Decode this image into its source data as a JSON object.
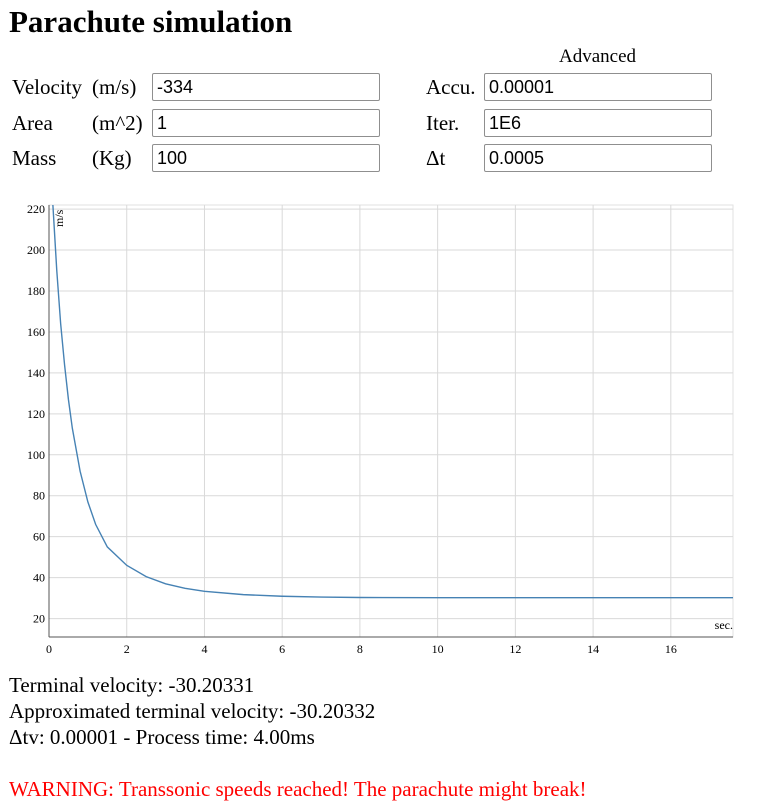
{
  "page": {
    "title": "Parachute simulation"
  },
  "inputs": {
    "velocity": {
      "label": "Velocity",
      "unit": "(m/s)",
      "value": "-334"
    },
    "area": {
      "label": "Area",
      "unit": "(m^2)",
      "value": "1"
    },
    "mass": {
      "label": "Mass",
      "unit": "(Kg)",
      "value": "100"
    }
  },
  "advanced": {
    "heading": "Advanced",
    "accuracy": {
      "label": "Accu.",
      "value": "0.00001"
    },
    "iterations": {
      "label": "Iter.",
      "value": "1E6"
    },
    "dt": {
      "label": "Δt",
      "value": "0.0005"
    }
  },
  "chart_data": {
    "type": "line",
    "ylabel": "m/s",
    "xlabel": "sec.",
    "xlim": [
      0,
      17.6
    ],
    "ylim": [
      11,
      222
    ],
    "x_ticks": [
      0,
      2,
      4,
      6,
      8,
      10,
      12,
      14,
      16
    ],
    "y_ticks": [
      20,
      40,
      60,
      80,
      100,
      120,
      140,
      160,
      180,
      200,
      220
    ],
    "grid": true,
    "series": [
      {
        "color": "#4682b4",
        "x": [
          0.1,
          0.2,
          0.3,
          0.4,
          0.5,
          0.6,
          0.8,
          1.0,
          1.2,
          1.5,
          2.0,
          2.5,
          3.0,
          3.5,
          4.0,
          5.0,
          6.0,
          7.0,
          8.0,
          10.0,
          12.0,
          14.0,
          17.6
        ],
        "y": [
          222,
          190,
          164,
          144,
          127,
          113,
          92,
          77,
          66,
          55,
          46,
          40.5,
          37,
          34.8,
          33.3,
          31.7,
          30.9,
          30.5,
          30.3,
          30.2,
          30.2,
          30.2,
          30.2
        ]
      }
    ]
  },
  "results": {
    "terminal_velocity": "Terminal velocity: -30.20331",
    "approx_terminal_velocity": "Approximated terminal velocity: -30.20332",
    "process": "Δtv: 0.00001 - Process time: 4.00ms",
    "warning": "WARNING: Transsonic speeds reached! The parachute might break!"
  }
}
